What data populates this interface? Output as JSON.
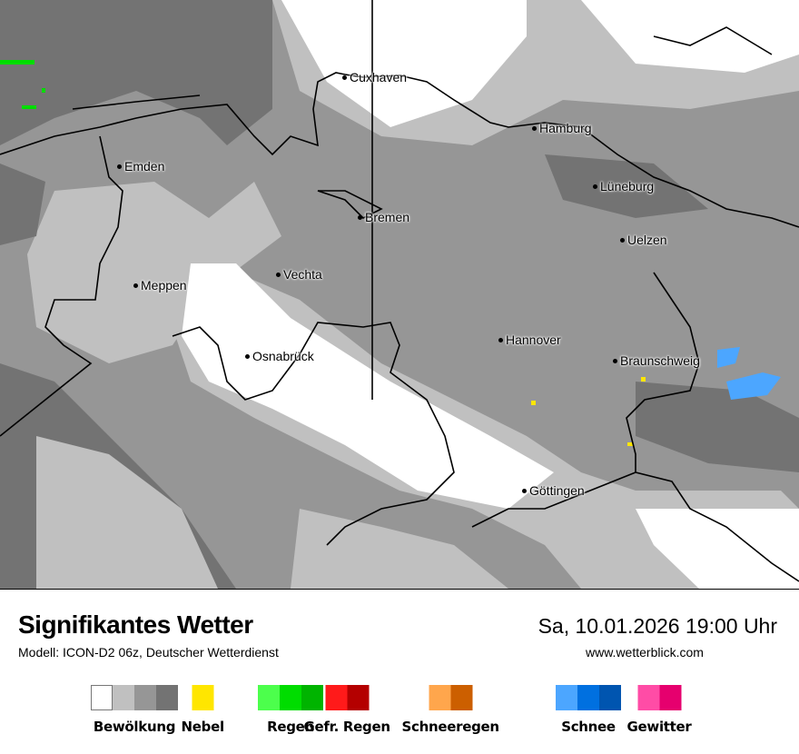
{
  "map": {
    "cities": [
      "Cuxhaven",
      "Hamburg",
      "Emden",
      "Lüneburg",
      "Bremen",
      "Uelzen",
      "Vechta",
      "Meppen",
      "Hannover",
      "Osnabrück",
      "Braunschweig",
      "Göttingen"
    ]
  },
  "header": {
    "title": "Signifikantes Wetter",
    "model": "Modell: ICON-D2 06z, Deutscher Wetterdienst",
    "datetime": "Sa, 10.01.2026 19:00 Uhr",
    "website": "www.wetterblick.com"
  },
  "legend": [
    {
      "label": "Bewölkung",
      "colors": [
        "#ffffff",
        "#c0c0c0",
        "#969696",
        "#737373"
      ]
    },
    {
      "label": "Nebel",
      "colors": [
        "#ffe600"
      ]
    },
    {
      "label": "Regen",
      "colors": [
        "#4cff4c",
        "#00dd00",
        "#00b400"
      ]
    },
    {
      "label": "Gefr. Regen",
      "colors": [
        "#ff1a1a",
        "#b40000"
      ]
    },
    {
      "label": "Schneeregen",
      "colors": [
        "#ffa64c",
        "#cc5f00"
      ]
    },
    {
      "label": "Schnee",
      "colors": [
        "#4ca6ff",
        "#0070e0",
        "#0055b0"
      ]
    },
    {
      "label": "Gewitter",
      "colors": [
        "#ff4ca6",
        "#e6006e"
      ]
    }
  ]
}
